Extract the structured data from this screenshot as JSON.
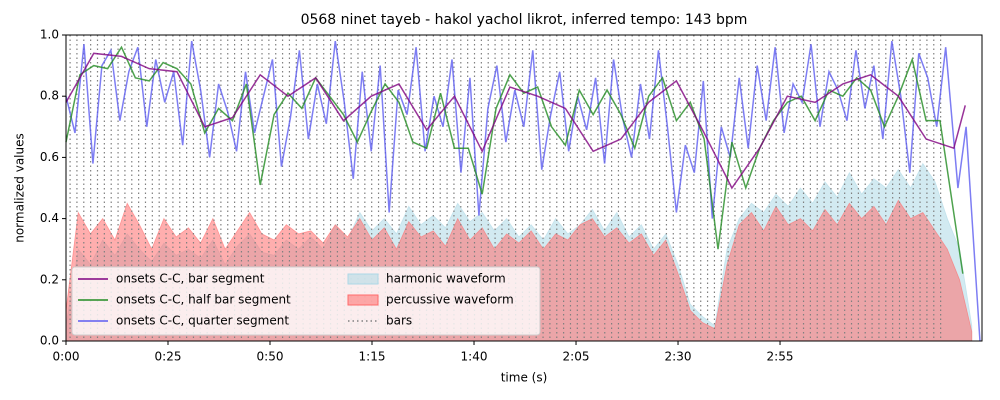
{
  "chart_data": {
    "type": "line",
    "title": "0568 ninet tayeb - hakol yachol likrot, inferred tempo: 143 bpm",
    "xlabel": "time (s)",
    "ylabel": "normalized values",
    "xlim": [
      0,
      224.5
    ],
    "ylim": [
      0,
      1
    ],
    "xticks": [
      {
        "value": 0,
        "label": "0:00"
      },
      {
        "value": 25,
        "label": "0:25"
      },
      {
        "value": 50,
        "label": "0:50"
      },
      {
        "value": 75,
        "label": "1:15"
      },
      {
        "value": 100,
        "label": "1:40"
      },
      {
        "value": 125,
        "label": "2:05"
      },
      {
        "value": 150,
        "label": "2:30"
      },
      {
        "value": 175,
        "label": "2:55"
      }
    ],
    "yticks": [
      {
        "value": 0,
        "label": "0.0"
      },
      {
        "value": 0.2,
        "label": "0.2"
      },
      {
        "value": 0.4,
        "label": "0.4"
      },
      {
        "value": 0.6,
        "label": "0.6"
      },
      {
        "value": 0.8,
        "label": "0.8"
      },
      {
        "value": 1,
        "label": "1.0"
      }
    ],
    "legend": "lower left",
    "series": [
      {
        "name": "onsets C-C, bar segment",
        "type": "line",
        "color": "#800080",
        "x": [
          0,
          6.8,
          13.6,
          20.4,
          27.2,
          34,
          40.8,
          47.6,
          54.4,
          61.2,
          68,
          74.8,
          81.6,
          88.4,
          95.2,
          102,
          108.8,
          115.6,
          122.4,
          129.2,
          136,
          142.8,
          149.6,
          156.4,
          163.2,
          170,
          176.8,
          183.6,
          190.4,
          197.2,
          204,
          210.8,
          217.6,
          220.4
        ],
        "values": [
          0.78,
          0.94,
          0.93,
          0.89,
          0.88,
          0.7,
          0.73,
          0.87,
          0.8,
          0.86,
          0.72,
          0.8,
          0.84,
          0.69,
          0.8,
          0.62,
          0.83,
          0.8,
          0.76,
          0.62,
          0.66,
          0.78,
          0.85,
          0.68,
          0.5,
          0.63,
          0.8,
          0.78,
          0.84,
          0.87,
          0.8,
          0.66,
          0.63,
          0.77
        ]
      },
      {
        "name": "onsets C-C, half bar segment",
        "type": "line",
        "color": "#228b22",
        "x": [
          0,
          3.4,
          6.8,
          10.2,
          13.6,
          17,
          20.4,
          23.8,
          27.2,
          30.6,
          34,
          37.4,
          40.8,
          44.2,
          47.6,
          51,
          54.4,
          57.8,
          61.2,
          64.6,
          68,
          71.4,
          74.8,
          78.2,
          81.6,
          85,
          88.4,
          91.8,
          95.2,
          98.6,
          102,
          105.4,
          108.8,
          112.2,
          115.6,
          119,
          122.4,
          125.8,
          129.2,
          132.6,
          136,
          139.4,
          142.8,
          146.2,
          149.6,
          153,
          156.4,
          159.8,
          163.2,
          166.6,
          170,
          173.4,
          176.8,
          180.2,
          183.6,
          187,
          190.4,
          193.8,
          197.2,
          200.6,
          204,
          207.4,
          210.8,
          214.2,
          219.8
        ],
        "values": [
          0.65,
          0.87,
          0.9,
          0.89,
          0.96,
          0.86,
          0.85,
          0.91,
          0.89,
          0.84,
          0.68,
          0.76,
          0.72,
          0.84,
          0.51,
          0.74,
          0.81,
          0.76,
          0.86,
          0.8,
          0.74,
          0.65,
          0.75,
          0.84,
          0.78,
          0.65,
          0.63,
          0.81,
          0.63,
          0.63,
          0.48,
          0.76,
          0.87,
          0.81,
          0.83,
          0.7,
          0.64,
          0.82,
          0.74,
          0.82,
          0.74,
          0.63,
          0.8,
          0.86,
          0.72,
          0.78,
          0.66,
          0.3,
          0.65,
          0.5,
          0.63,
          0.72,
          0.78,
          0.8,
          0.72,
          0.82,
          0.8,
          0.86,
          0.82,
          0.7,
          0.8,
          0.92,
          0.72,
          0.72,
          0.22
        ]
      },
      {
        "name": "onsets C-C, quarter segment",
        "type": "line",
        "color": "#5c5cf0",
        "x": [
          0,
          2.2,
          4.4,
          6.6,
          8.8,
          11,
          13.2,
          15.4,
          17.6,
          19.8,
          22,
          24.2,
          26.4,
          28.6,
          30.8,
          33,
          35.2,
          37.4,
          39.6,
          41.8,
          44,
          46.2,
          48.4,
          50.6,
          52.8,
          55,
          57.2,
          59.4,
          61.6,
          63.8,
          66,
          68.2,
          70.4,
          72.6,
          74.8,
          77,
          79.2,
          81.4,
          83.6,
          85.8,
          88,
          90.2,
          92.4,
          94.6,
          96.8,
          99,
          101.2,
          103.4,
          105.6,
          107.8,
          110,
          112.2,
          114.4,
          116.6,
          118.8,
          121,
          123.2,
          125.4,
          127.6,
          129.8,
          132,
          134.2,
          136.4,
          138.6,
          140.8,
          143,
          145.2,
          147.4,
          149.6,
          151.8,
          154,
          156.2,
          158.4,
          160.6,
          162.8,
          165,
          167.2,
          169.4,
          171.6,
          173.8,
          176,
          178.2,
          180.4,
          182.6,
          184.8,
          187,
          189.2,
          191.4,
          193.6,
          195.8,
          198,
          200.2,
          202.4,
          204.6,
          206.8,
          209,
          211.2,
          213.4,
          215.6,
          218.6,
          220.6,
          224
        ],
        "values": [
          0.8,
          0.68,
          0.97,
          0.58,
          0.9,
          0.95,
          0.72,
          0.88,
          0.96,
          0.7,
          0.92,
          0.78,
          0.88,
          0.64,
          0.98,
          0.82,
          0.6,
          0.84,
          0.75,
          0.62,
          0.88,
          0.68,
          0.8,
          0.92,
          0.57,
          0.73,
          0.95,
          0.66,
          0.84,
          0.71,
          0.98,
          0.78,
          0.53,
          0.88,
          0.62,
          0.9,
          0.42,
          0.82,
          0.74,
          0.96,
          0.62,
          0.8,
          0.7,
          0.92,
          0.55,
          0.86,
          0.41,
          0.76,
          0.9,
          0.65,
          0.82,
          0.7,
          0.95,
          0.56,
          0.74,
          0.88,
          0.62,
          0.8,
          0.69,
          0.86,
          0.58,
          0.92,
          0.73,
          0.6,
          0.84,
          0.66,
          0.95,
          0.7,
          0.42,
          0.64,
          0.55,
          0.85,
          0.4,
          0.7,
          0.6,
          0.86,
          0.63,
          0.9,
          0.72,
          0.96,
          0.68,
          0.84,
          0.78,
          0.97,
          0.7,
          0.88,
          0.82,
          0.72,
          0.95,
          0.76,
          0.9,
          0.66,
          0.98,
          0.8,
          0.55,
          0.94,
          0.86,
          0.7,
          0.96,
          0.5,
          0.7,
          0
        ]
      },
      {
        "name": "harmonic waveform",
        "type": "area",
        "color": "#add8e6",
        "x": [
          0,
          3,
          6,
          9,
          12,
          15,
          18,
          21,
          24,
          27,
          30,
          33,
          36,
          39,
          42,
          45,
          48,
          51,
          54,
          57,
          60,
          63,
          66,
          69,
          72,
          75,
          78,
          81,
          84,
          87,
          90,
          93,
          96,
          99,
          102,
          105,
          108,
          111,
          114,
          117,
          120,
          123,
          126,
          129,
          132,
          135,
          138,
          141,
          144,
          147,
          150,
          153,
          156,
          159,
          162,
          165,
          168,
          171,
          174,
          177,
          180,
          183,
          186,
          189,
          192,
          195,
          198,
          201,
          204,
          207,
          210,
          213,
          216,
          219,
          222
        ],
        "values": [
          0.05,
          0.3,
          0.25,
          0.33,
          0.28,
          0.35,
          0.3,
          0.26,
          0.32,
          0.28,
          0.3,
          0.27,
          0.33,
          0.25,
          0.31,
          0.35,
          0.29,
          0.28,
          0.33,
          0.3,
          0.34,
          0.3,
          0.38,
          0.33,
          0.42,
          0.36,
          0.4,
          0.35,
          0.44,
          0.38,
          0.41,
          0.37,
          0.45,
          0.39,
          0.42,
          0.36,
          0.4,
          0.34,
          0.38,
          0.33,
          0.4,
          0.35,
          0.38,
          0.43,
          0.36,
          0.42,
          0.34,
          0.38,
          0.3,
          0.35,
          0.25,
          0.12,
          0.08,
          0.05,
          0.3,
          0.4,
          0.45,
          0.42,
          0.48,
          0.44,
          0.5,
          0.45,
          0.52,
          0.47,
          0.55,
          0.48,
          0.53,
          0.5,
          0.56,
          0.5,
          0.58,
          0.52,
          0.4,
          0.3,
          0.05
        ]
      },
      {
        "name": "percussive waveform",
        "type": "area",
        "color": "#ff6b6b",
        "x": [
          0,
          3,
          6,
          9,
          12,
          15,
          18,
          21,
          24,
          27,
          30,
          33,
          36,
          39,
          42,
          45,
          48,
          51,
          54,
          57,
          60,
          63,
          66,
          69,
          72,
          75,
          78,
          81,
          84,
          87,
          90,
          93,
          96,
          99,
          102,
          105,
          108,
          111,
          114,
          117,
          120,
          123,
          126,
          129,
          132,
          135,
          138,
          141,
          144,
          147,
          150,
          153,
          156,
          159,
          162,
          165,
          168,
          171,
          174,
          177,
          180,
          183,
          186,
          189,
          192,
          195,
          198,
          201,
          204,
          207,
          210,
          213,
          216,
          219,
          222
        ],
        "values": [
          0.1,
          0.42,
          0.35,
          0.4,
          0.33,
          0.45,
          0.38,
          0.3,
          0.4,
          0.34,
          0.37,
          0.32,
          0.4,
          0.3,
          0.36,
          0.42,
          0.35,
          0.33,
          0.38,
          0.35,
          0.36,
          0.32,
          0.38,
          0.34,
          0.4,
          0.33,
          0.37,
          0.3,
          0.39,
          0.34,
          0.36,
          0.31,
          0.4,
          0.33,
          0.37,
          0.3,
          0.35,
          0.32,
          0.36,
          0.3,
          0.35,
          0.33,
          0.38,
          0.4,
          0.34,
          0.37,
          0.32,
          0.35,
          0.28,
          0.33,
          0.22,
          0.1,
          0.06,
          0.04,
          0.25,
          0.38,
          0.42,
          0.36,
          0.44,
          0.38,
          0.4,
          0.36,
          0.43,
          0.38,
          0.45,
          0.4,
          0.44,
          0.38,
          0.46,
          0.4,
          0.42,
          0.36,
          0.3,
          0.2,
          0.03
        ]
      }
    ],
    "bars": {
      "name": "bars",
      "color": "#808080",
      "x": [
        1,
        2.68,
        4.36,
        6.04,
        7.72,
        9.4,
        11.08,
        12.76,
        14.44,
        16.12,
        17.8,
        19.48,
        21.16,
        22.84,
        24.52,
        26.2,
        27.88,
        29.56,
        31.24,
        32.92,
        34.6,
        36.28,
        37.96,
        39.64,
        41.32,
        43,
        44.68,
        46.36,
        48.04,
        49.72,
        51.4,
        53.08,
        54.76,
        56.44,
        58.12,
        59.8,
        61.48,
        63.16,
        64.84,
        66.52,
        68.2,
        69.88,
        71.56,
        73.24,
        74.92,
        76.6,
        78.28,
        79.96,
        81.64,
        83.32,
        85,
        86.68,
        88.36,
        90.04,
        91.72,
        93.4,
        95.08,
        96.76,
        98.44,
        100.12,
        101.8,
        103.48,
        105.16,
        106.84,
        108.52,
        110.2,
        111.88,
        113.56,
        115.24,
        116.92,
        118.6,
        120.28,
        121.96,
        123.64,
        125.32,
        127,
        128.68,
        130.36,
        132.04,
        133.72,
        135.4,
        137.08,
        138.76,
        140.44,
        142.12,
        143.8,
        145.48,
        147.16,
        148.84,
        150.52,
        152.2,
        153.88,
        155.56,
        157.24,
        158.92,
        160.6,
        162.28,
        163.96,
        165.64,
        167.32,
        169,
        170.68,
        172.36,
        174.04,
        175.72,
        177.4,
        179.08,
        180.76,
        182.44,
        184.12,
        185.8,
        187.48,
        189.16,
        190.84,
        192.52,
        194.2,
        195.88,
        197.56,
        199.24,
        200.92,
        202.6,
        204.28,
        205.96,
        207.64,
        209.32,
        211,
        212.68,
        214.36
      ]
    }
  }
}
